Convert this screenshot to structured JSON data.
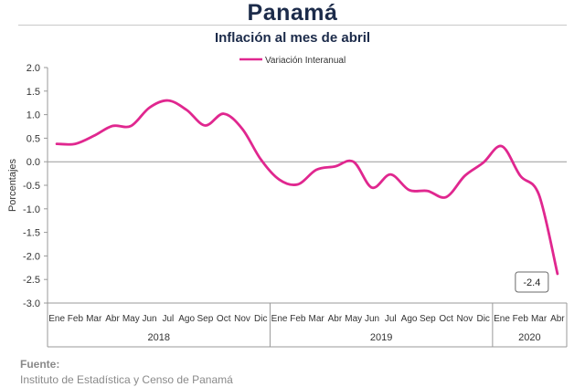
{
  "header": {
    "title": "Panamá",
    "subtitle": "Inflación al mes de abril"
  },
  "footer": {
    "label": "Fuente:",
    "source": "Instituto de Estadística y Censo de Panamá"
  },
  "colors": {
    "series": "#e0278f",
    "title": "#1c2b4a",
    "axis": "#999999",
    "text": "#333333"
  },
  "chart_data": {
    "type": "line",
    "ylabel": "Porcentajes",
    "ylim": [
      -3.0,
      2.0
    ],
    "yticks": [
      2.0,
      1.5,
      1.0,
      0.5,
      0.0,
      -0.5,
      -1.0,
      -1.5,
      -2.0,
      -2.5,
      -3.0
    ],
    "ytick_labels": [
      "2.0",
      "1.5",
      "1.0",
      "0.5",
      "0.0",
      "-0.5",
      "-1.0",
      "-1.5",
      "-2.0",
      "-2.5",
      "-3.0"
    ],
    "grid": false,
    "legend": {
      "position": "top-center"
    },
    "categories": [
      "Ene",
      "Feb",
      "Mar",
      "Abr",
      "May",
      "Jun",
      "Jul",
      "Ago",
      "Sep",
      "Oct",
      "Nov",
      "Dic",
      "Ene",
      "Feb",
      "Mar",
      "Abr",
      "May",
      "Jun",
      "Jul",
      "Ago",
      "Sep",
      "Oct",
      "Nov",
      "Dic",
      "Ene",
      "Feb",
      "Mar",
      "Abr"
    ],
    "year_groups": [
      {
        "label": "2018",
        "count": 12
      },
      {
        "label": "2019",
        "count": 12
      },
      {
        "label": "2020",
        "count": 4
      }
    ],
    "series": [
      {
        "name": "Variación Interanual",
        "values": [
          0.38,
          0.38,
          0.55,
          0.76,
          0.76,
          1.15,
          1.3,
          1.1,
          0.77,
          1.02,
          0.7,
          0.05,
          -0.38,
          -0.48,
          -0.17,
          -0.1,
          0.0,
          -0.55,
          -0.27,
          -0.6,
          -0.62,
          -0.75,
          -0.3,
          -0.02,
          0.33,
          -0.3,
          -0.7,
          -2.38
        ]
      }
    ],
    "annotations": [
      {
        "label": "-2.4",
        "index": 27
      }
    ]
  }
}
